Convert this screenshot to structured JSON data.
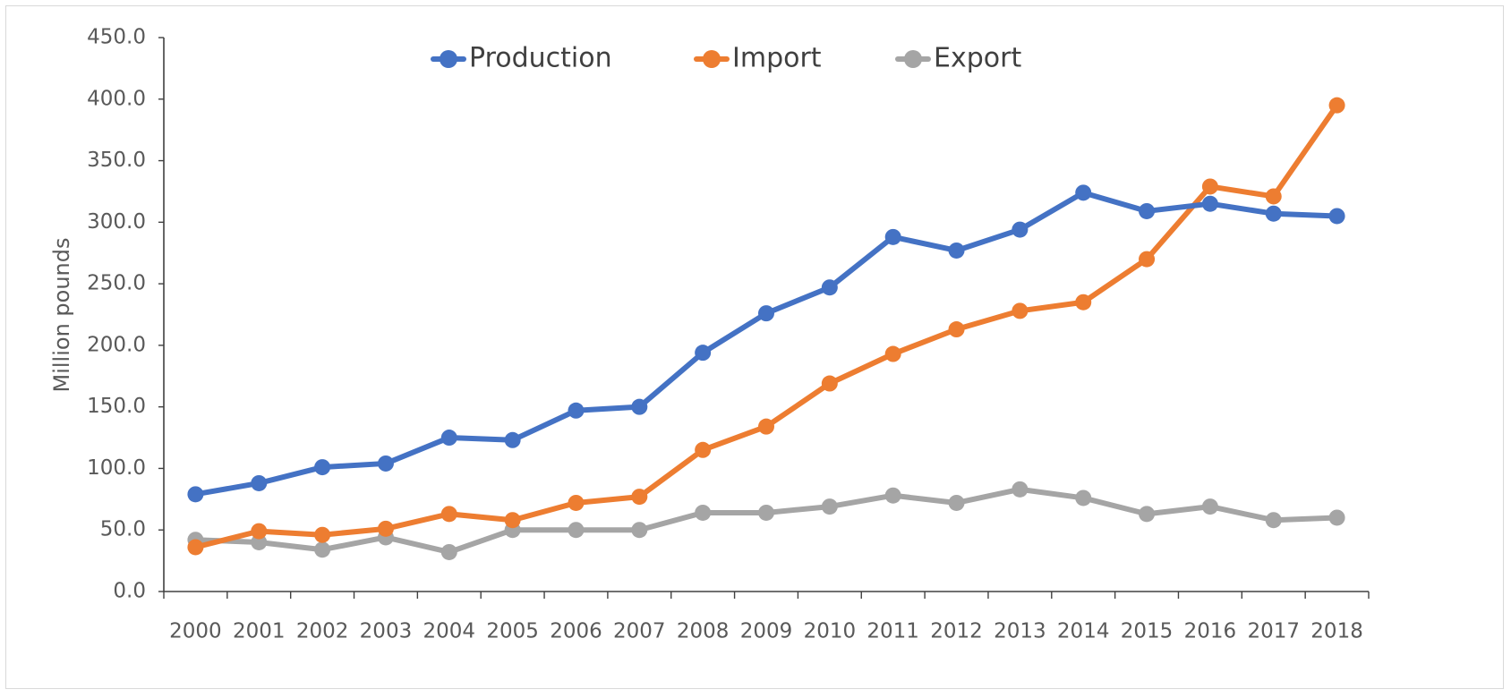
{
  "chart_data": {
    "type": "line",
    "title": "",
    "xlabel": "",
    "ylabel": "Million pounds",
    "ylim": [
      0,
      450
    ],
    "yticks": [
      "0.0",
      "50.0",
      "100.0",
      "150.0",
      "200.0",
      "250.0",
      "300.0",
      "350.0",
      "400.0",
      "450.0"
    ],
    "categories": [
      "2000",
      "2001",
      "2002",
      "2003",
      "2004",
      "2005",
      "2006",
      "2007",
      "2008",
      "2009",
      "2010",
      "2011",
      "2012",
      "2013",
      "2014",
      "2015",
      "2016",
      "2017",
      "2018"
    ],
    "grid": false,
    "legend_position": "top",
    "series": [
      {
        "name": "Production",
        "color": "#4472c4",
        "values": [
          79,
          88,
          101,
          104,
          125,
          123,
          147,
          150,
          194,
          226,
          247,
          288,
          277,
          294,
          324,
          309,
          315,
          307,
          305
        ]
      },
      {
        "name": "Import",
        "color": "#ed7d31",
        "values": [
          36,
          49,
          46,
          51,
          63,
          58,
          72,
          77,
          115,
          134,
          169,
          193,
          213,
          228,
          235,
          270,
          329,
          321,
          395
        ]
      },
      {
        "name": "Export",
        "color": "#a5a5a5",
        "values": [
          42,
          40,
          34,
          44,
          32,
          50,
          50,
          50,
          64,
          64,
          69,
          78,
          72,
          83,
          76,
          63,
          69,
          58,
          60
        ]
      }
    ]
  }
}
